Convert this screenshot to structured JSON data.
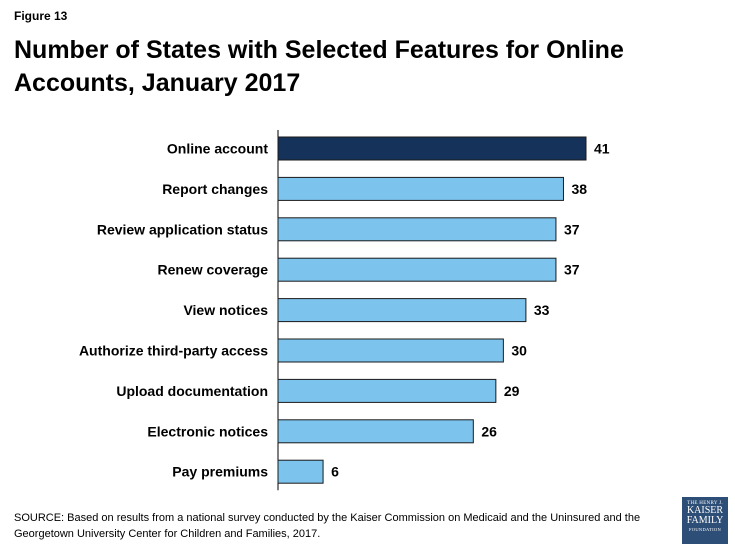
{
  "figure_label": "Figure 13",
  "title": "Number of States with Selected Features for Online Accounts, January 2017",
  "source": "SOURCE: Based on results from a national survey conducted by the Kaiser Commission on Medicaid and the Uninsured and the Georgetown University Center for Children and Families, 2017.",
  "logo": {
    "line1": "THE HENRY J.",
    "line2": "KAISER",
    "line3": "FAMILY",
    "line4": "FOUNDATION"
  },
  "colors": {
    "highlight": "#14325a",
    "bar": "#7cc4ed",
    "border": "#1a1a1a"
  },
  "chart_data": {
    "type": "bar",
    "orientation": "horizontal",
    "title": "Number of States with Selected Features for Online Accounts, January 2017",
    "xlabel": "",
    "ylabel": "",
    "categories": [
      "Online account",
      "Report changes",
      "Review application status",
      "Renew coverage",
      "View notices",
      "Authorize third-party access",
      "Upload documentation",
      "Electronic notices",
      "Pay premiums"
    ],
    "values": [
      41,
      38,
      37,
      37,
      33,
      30,
      29,
      26,
      6
    ],
    "highlighted_index": 0,
    "xlim": [
      0,
      41
    ],
    "grid": false
  }
}
